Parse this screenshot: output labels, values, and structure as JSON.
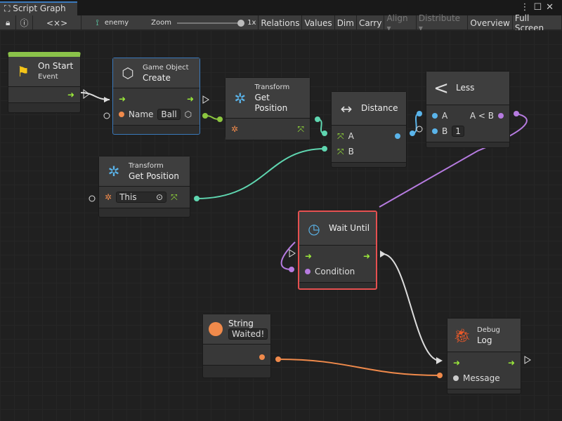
{
  "window": {
    "tab_title": "Script Graph",
    "menu_icon": "kebab-icon",
    "maximize_icon": "maximize-icon",
    "close_icon": "close-icon"
  },
  "toolbar": {
    "lock_icon": "lock-icon",
    "info_icon": "info-icon",
    "code_label": "<×>",
    "graph_name": "enemy",
    "zoom_label": "Zoom",
    "zoom_value": "1x",
    "zoom_fraction": 1.0,
    "buttons": [
      "Relations",
      "Values",
      "Dim",
      "Carry",
      "Align ▾",
      "Distribute ▾",
      "Overview",
      "Full Screen"
    ]
  },
  "nodes": {
    "on_start": {
      "title": "On Start",
      "subtitle": "Event",
      "accent": "#8bc34a"
    },
    "create": {
      "category": "Game Object",
      "title": "Create",
      "port_name": "Name",
      "name_value": "Ball"
    },
    "get_pos1": {
      "category": "Transform",
      "title": "Get Position"
    },
    "distance": {
      "title": "Distance",
      "port_a": "A",
      "port_b": "B"
    },
    "less": {
      "title": "Less",
      "port_a": "A",
      "port_b": "B",
      "b_value": "1",
      "output": "A < B"
    },
    "get_pos2": {
      "category": "Transform",
      "title": "Get Position",
      "target_value": "This"
    },
    "wait_until": {
      "title": "Wait Until",
      "port": "Condition",
      "border_color": "#e65050"
    },
    "string": {
      "title": "String",
      "value": "Waited!"
    },
    "debug_log": {
      "category": "Debug",
      "title": "Log",
      "port": "Message"
    }
  },
  "colors": {
    "flow": "#9bea3a",
    "vector": "#5fd6b0",
    "float": "#5ab4ea",
    "bool": "#b67be0",
    "string": "#f08a4b",
    "gameobject": "#8cc63f"
  }
}
